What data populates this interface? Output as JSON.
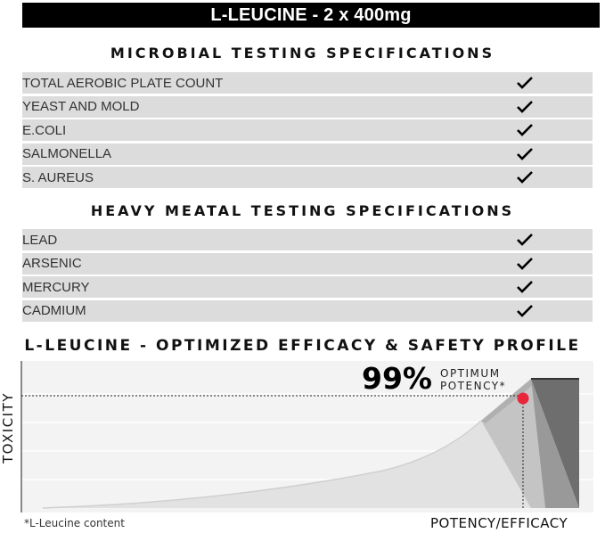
{
  "header": {
    "title": "L-LEUCINE - 2 x 400mg"
  },
  "microbial": {
    "heading": "MICROBIAL TESTING SPECIFICATIONS",
    "rows": [
      {
        "label": "TOTAL AEROBIC PLATE COUNT",
        "icon": "check-icon"
      },
      {
        "label": "YEAST AND MOLD",
        "icon": "check-icon"
      },
      {
        "label": "E.COLI",
        "icon": "check-icon"
      },
      {
        "label": "SALMONELLA",
        "icon": "check-icon"
      },
      {
        "label": "S. AUREUS",
        "icon": "check-icon"
      }
    ]
  },
  "metals": {
    "heading": "HEAVY MEATAL TESTING SPECIFICATIONS",
    "rows": [
      {
        "label": "LEAD",
        "icon": "check-icon"
      },
      {
        "label": "ARSENIC",
        "icon": "check-icon"
      },
      {
        "label": "MERCURY",
        "icon": "check-icon"
      },
      {
        "label": "CADMIUM",
        "icon": "check-icon"
      }
    ]
  },
  "profile": {
    "heading": "L-LEUCINE - OPTIMIZED EFFICACY & SAFETY PROFILE",
    "ylabel": "TOXICITY",
    "xlabel": "POTENCY/EFFICACY",
    "potency_value": "99%",
    "potency_line1": "OPTIMUM",
    "potency_line2": "POTENCY*",
    "footnote": "*L-Leucine content",
    "marker_color": "#e8283a"
  }
}
